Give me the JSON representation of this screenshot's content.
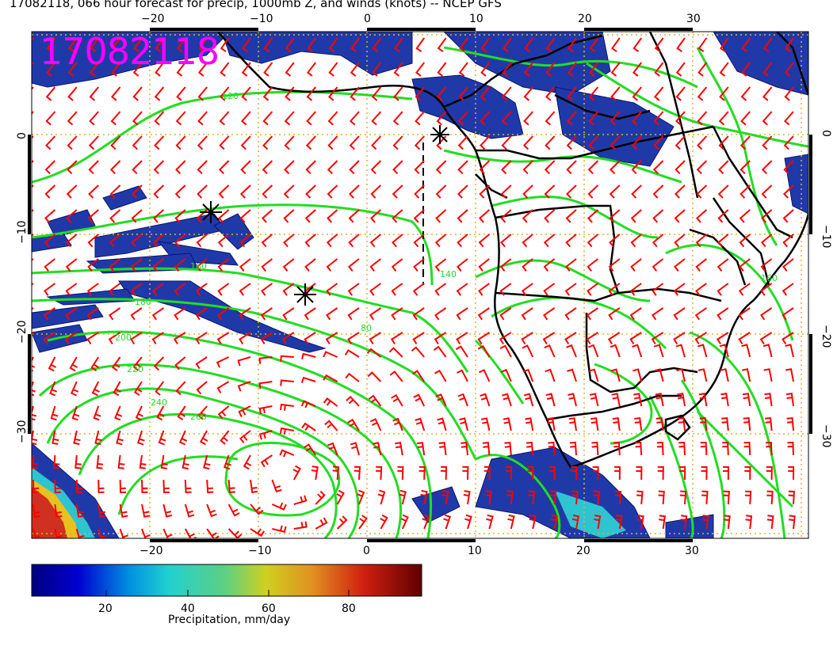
{
  "title": "17082118, 066 hour forecast for precip, 1000mb Z, and winds (knots) -- NCEP GFS",
  "stamp": "17082118",
  "axes": {
    "lon_ticks": [
      "−20",
      "−10",
      "0",
      "10",
      "20",
      "30"
    ],
    "lat_ticks_left": [
      "0",
      "−10",
      "−20",
      "−30"
    ],
    "lat_ticks_right": [
      "0",
      "−10",
      "−20",
      "−30"
    ]
  },
  "colorbar": {
    "ticks": [
      "20",
      "40",
      "60",
      "80"
    ],
    "label": "Precipitation, mm/day"
  },
  "contour_labels": [
    "120",
    "140",
    "160",
    "160",
    "180",
    "200",
    "220",
    "240",
    "260",
    "80"
  ],
  "colors": {
    "land_outline": "#000000",
    "contours": "#22dd22",
    "barbs": "#ff0000",
    "precip_low": "#1a2ca8",
    "stamp": "#ff00ff",
    "grid": "#e0b030"
  }
}
